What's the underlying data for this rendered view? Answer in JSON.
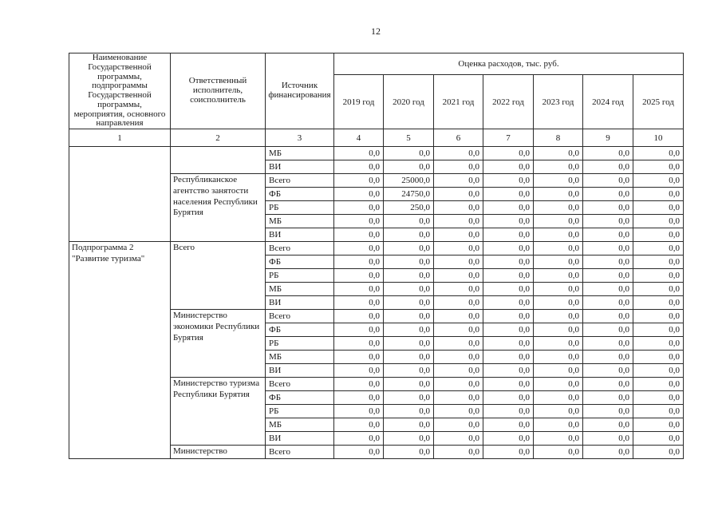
{
  "page": {
    "number": "12"
  },
  "table": {
    "header": {
      "col1": "Наименование Государственной программы, подпрограммы Государственной программы, мероприятия, основного направления",
      "col2": "Ответственный исполнитель, соисполнитель",
      "col3": "Источник финансирования",
      "expenses_title": "Оценка расходов, тыс. руб.",
      "years": [
        "2019 год",
        "2020 год",
        "2021 год",
        "2022 год",
        "2023 год",
        "2024 год",
        "2025 год"
      ],
      "column_numbers": [
        "1",
        "2",
        "3",
        "4",
        "5",
        "6",
        "7",
        "8",
        "9",
        "10"
      ]
    },
    "blocks": [
      {
        "name": "",
        "executors": [
          {
            "name": "",
            "rows": [
              {
                "source": "МБ",
                "values": [
                  "0,0",
                  "0,0",
                  "0,0",
                  "0,0",
                  "0,0",
                  "0,0",
                  "0,0"
                ]
              },
              {
                "source": "ВИ",
                "values": [
                  "0,0",
                  "0,0",
                  "0,0",
                  "0,0",
                  "0,0",
                  "0,0",
                  "0,0"
                ]
              }
            ]
          },
          {
            "name": "Республиканское агентство занятости населения Республики Бурятия",
            "rows": [
              {
                "source": "Всего",
                "values": [
                  "0,0",
                  "25000,0",
                  "0,0",
                  "0,0",
                  "0,0",
                  "0,0",
                  "0,0"
                ]
              },
              {
                "source": "ФБ",
                "values": [
                  "0,0",
                  "24750,0",
                  "0,0",
                  "0,0",
                  "0,0",
                  "0,0",
                  "0,0"
                ]
              },
              {
                "source": "РБ",
                "values": [
                  "0,0",
                  "250,0",
                  "0,0",
                  "0,0",
                  "0,0",
                  "0,0",
                  "0,0"
                ]
              },
              {
                "source": "МБ",
                "values": [
                  "0,0",
                  "0,0",
                  "0,0",
                  "0,0",
                  "0,0",
                  "0,0",
                  "0,0"
                ]
              },
              {
                "source": "ВИ",
                "values": [
                  "0,0",
                  "0,0",
                  "0,0",
                  "0,0",
                  "0,0",
                  "0,0",
                  "0,0"
                ]
              }
            ]
          }
        ]
      },
      {
        "name": "Подпрограмма 2 \"Развитие туризма\"",
        "executors": [
          {
            "name": "Всего",
            "rows": [
              {
                "source": "Всего",
                "values": [
                  "0,0",
                  "0,0",
                  "0,0",
                  "0,0",
                  "0,0",
                  "0,0",
                  "0,0"
                ]
              },
              {
                "source": "ФБ",
                "values": [
                  "0,0",
                  "0,0",
                  "0,0",
                  "0,0",
                  "0,0",
                  "0,0",
                  "0,0"
                ]
              },
              {
                "source": "РБ",
                "values": [
                  "0,0",
                  "0,0",
                  "0,0",
                  "0,0",
                  "0,0",
                  "0,0",
                  "0,0"
                ]
              },
              {
                "source": "МБ",
                "values": [
                  "0,0",
                  "0,0",
                  "0,0",
                  "0,0",
                  "0,0",
                  "0,0",
                  "0,0"
                ]
              },
              {
                "source": "ВИ",
                "values": [
                  "0,0",
                  "0,0",
                  "0,0",
                  "0,0",
                  "0,0",
                  "0,0",
                  "0,0"
                ]
              }
            ]
          },
          {
            "name": "Министерство экономики Республики Бурятия",
            "rows": [
              {
                "source": "Всего",
                "values": [
                  "0,0",
                  "0,0",
                  "0,0",
                  "0,0",
                  "0,0",
                  "0,0",
                  "0,0"
                ]
              },
              {
                "source": "ФБ",
                "values": [
                  "0,0",
                  "0,0",
                  "0,0",
                  "0,0",
                  "0,0",
                  "0,0",
                  "0,0"
                ]
              },
              {
                "source": "РБ",
                "values": [
                  "0,0",
                  "0,0",
                  "0,0",
                  "0,0",
                  "0,0",
                  "0,0",
                  "0,0"
                ]
              },
              {
                "source": "МБ",
                "values": [
                  "0,0",
                  "0,0",
                  "0,0",
                  "0,0",
                  "0,0",
                  "0,0",
                  "0,0"
                ]
              },
              {
                "source": "ВИ",
                "values": [
                  "0,0",
                  "0,0",
                  "0,0",
                  "0,0",
                  "0,0",
                  "0,0",
                  "0,0"
                ]
              }
            ]
          },
          {
            "name": "Министерство туризма Республики Бурятия",
            "rows": [
              {
                "source": "Всего",
                "values": [
                  "0,0",
                  "0,0",
                  "0,0",
                  "0,0",
                  "0,0",
                  "0,0",
                  "0,0"
                ]
              },
              {
                "source": "ФБ",
                "values": [
                  "0,0",
                  "0,0",
                  "0,0",
                  "0,0",
                  "0,0",
                  "0,0",
                  "0,0"
                ]
              },
              {
                "source": "РБ",
                "values": [
                  "0,0",
                  "0,0",
                  "0,0",
                  "0,0",
                  "0,0",
                  "0,0",
                  "0,0"
                ]
              },
              {
                "source": "МБ",
                "values": [
                  "0,0",
                  "0,0",
                  "0,0",
                  "0,0",
                  "0,0",
                  "0,0",
                  "0,0"
                ]
              },
              {
                "source": "ВИ",
                "values": [
                  "0,0",
                  "0,0",
                  "0,0",
                  "0,0",
                  "0,0",
                  "0,0",
                  "0,0"
                ]
              }
            ]
          },
          {
            "name": "Министерство",
            "rows": [
              {
                "source": "Всего",
                "values": [
                  "0,0",
                  "0,0",
                  "0,0",
                  "0,0",
                  "0,0",
                  "0,0",
                  "0,0"
                ]
              }
            ]
          }
        ]
      }
    ]
  }
}
